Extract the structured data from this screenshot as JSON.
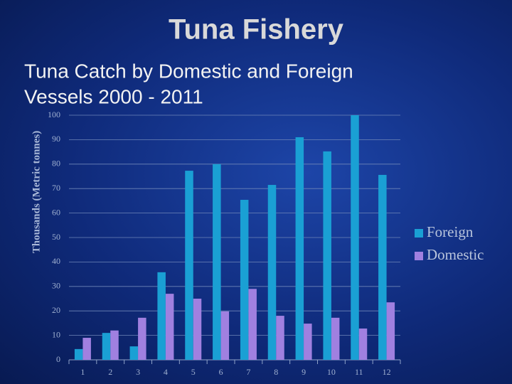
{
  "title": "Tuna Fishery",
  "subtitle": [
    "Tuna Catch by Domestic and Foreign",
    "Vessels 2000 - 2011"
  ],
  "chart_data": {
    "type": "bar",
    "ylabel": "Thousands (Metric tonnes)",
    "categories": [
      "1",
      "2",
      "3",
      "4",
      "5",
      "6",
      "7",
      "8",
      "9",
      "10",
      "11",
      "12"
    ],
    "series": [
      {
        "name": "Foreign",
        "color": "#1aa0d4",
        "values": [
          4.4,
          11,
          5.5,
          35.8,
          77.3,
          80,
          65.4,
          71.5,
          91,
          85.2,
          100,
          75.6
        ]
      },
      {
        "name": "Domestic",
        "color": "#a080e0",
        "values": [
          9,
          12,
          17.2,
          27,
          25,
          19.8,
          29,
          18,
          14.8,
          17.2,
          12.8,
          23.5
        ]
      }
    ],
    "ylim": [
      0,
      100
    ],
    "yticks": [
      0,
      10,
      20,
      30,
      40,
      50,
      60,
      70,
      80,
      90,
      100
    ],
    "grid": true,
    "legend": "right"
  }
}
